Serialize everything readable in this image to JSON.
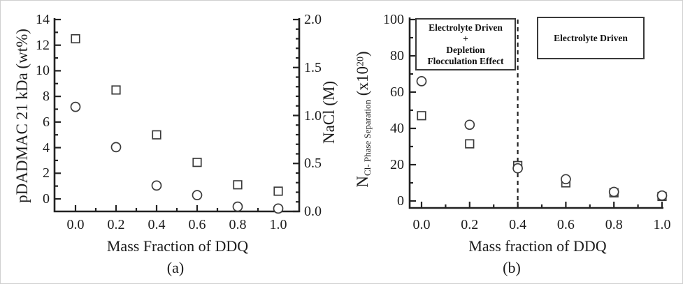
{
  "figure": {
    "panel_a": {
      "ylabel_left": "pDADMAC 21 kDa (wt%)",
      "ylabel_right": "NaCl (M)",
      "xlabel": "Mass Fraction of DDQ",
      "caption": "(a)"
    },
    "panel_b": {
      "ylabel": {
        "base": "N",
        "sub": "Cl- Phase Separation",
        "open": " (x10",
        "sup": "20",
        "close": ")"
      },
      "xlabel": "Mass fraction of DDQ",
      "caption": "(b)",
      "region_left": {
        "lines": [
          "Electrolyte Driven",
          "+",
          "Depletion",
          "Flocculation Effect"
        ]
      },
      "region_right": {
        "label": "Electrolyte Driven"
      }
    }
  },
  "chart_data": [
    {
      "type": "scatter",
      "panel": "a",
      "xlabel": "Mass Fraction of DDQ",
      "ylabel_left": "pDADMAC 21 kDa (wt%)",
      "ylabel_right": "NaCl (M)",
      "xtick_labels": [
        "0.0",
        "0.2",
        "0.4",
        "0.6",
        "0.8",
        "1.0"
      ],
      "ytick_labels_left": [
        "0",
        "2",
        "4",
        "6",
        "8",
        "10",
        "12",
        "14"
      ],
      "ytick_labels_right": [
        "0.0",
        "0.5",
        "1.0",
        "1.5",
        "2.0"
      ],
      "xlim": [
        -0.1,
        1.1
      ],
      "ylim_left": [
        -1,
        14
      ],
      "ylim_right": [
        0,
        2.0
      ],
      "grid": false,
      "legend": "none",
      "series": [
        {
          "name": "pDADMAC 21 kDa (squares, left axis)",
          "marker": "square",
          "yaxis": "left",
          "x": [
            0.0,
            0.2,
            0.4,
            0.6,
            0.8,
            1.0
          ],
          "y": [
            12.5,
            8.5,
            5.0,
            2.85,
            1.1,
            0.6
          ]
        },
        {
          "name": "NaCl (circles, right axis)",
          "marker": "circle",
          "yaxis": "right",
          "x": [
            0.0,
            0.2,
            0.4,
            0.6,
            0.8,
            1.0
          ],
          "y": [
            1.09,
            0.67,
            0.27,
            0.17,
            0.05,
            0.03
          ]
        }
      ]
    },
    {
      "type": "scatter",
      "panel": "b",
      "xlabel": "Mass fraction of DDQ",
      "ylabel": "N Cl- Phase Separation (x10^20)",
      "xtick_labels": [
        "0.0",
        "0.2",
        "0.4",
        "0.6",
        "0.8",
        "1.0"
      ],
      "ytick_labels": [
        "0",
        "20",
        "40",
        "60",
        "80",
        "100"
      ],
      "xlim": [
        -0.05,
        1.0
      ],
      "ylim": [
        -4,
        100
      ],
      "grid": false,
      "legend": "none",
      "series": [
        {
          "name": "circles",
          "marker": "circle",
          "x": [
            0.0,
            0.2,
            0.4,
            0.6,
            0.8,
            1.0
          ],
          "y": [
            66,
            42,
            18,
            12,
            5,
            3
          ]
        },
        {
          "name": "squares",
          "marker": "square",
          "x": [
            0.0,
            0.2,
            0.4,
            0.6,
            0.8,
            1.0
          ],
          "y": [
            47,
            31.5,
            19.5,
            10,
            4.5,
            2.5
          ]
        }
      ],
      "annotations": {
        "dashed_vline_x": 0.4,
        "regions": [
          {
            "text": "Electrolyte Driven + Depletion Flocculation Effect",
            "x_range": [
              0.0,
              0.4
            ]
          },
          {
            "text": "Electrolyte Driven",
            "x_range": [
              0.4,
              1.0
            ]
          }
        ]
      }
    }
  ]
}
